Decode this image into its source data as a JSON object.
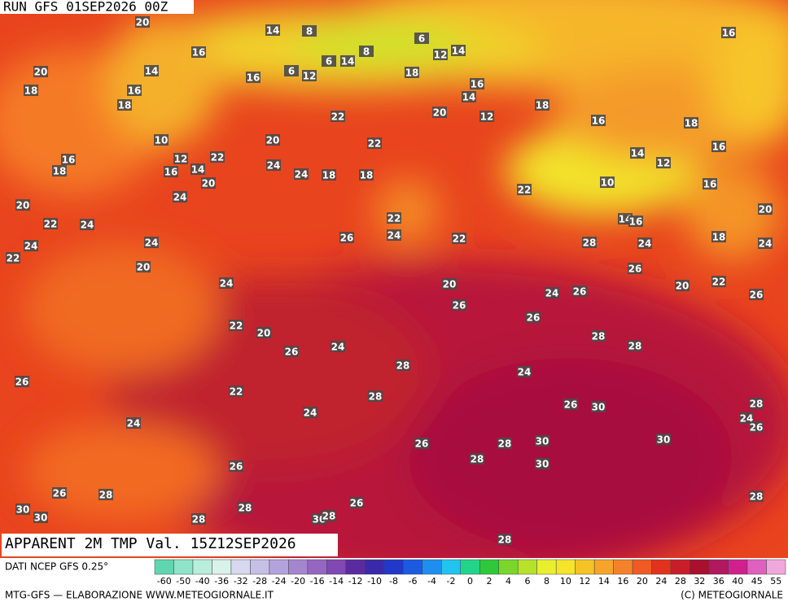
{
  "header": "RUN GFS 01SEP2026 00Z",
  "title": "APPARENT 2M TMP Val. 15Z12SEP2026",
  "source": "DATI NCEP GFS 0.25°",
  "footer_left": "MTG-GFS — ELABORAZIONE WWW.METEOGIORNALE.IT",
  "footer_right": "(C) METEOGIORNALE",
  "colorbar": {
    "labels": [
      -60,
      -50,
      -40,
      -36,
      -32,
      -28,
      -24,
      -20,
      -16,
      -14,
      -12,
      -10,
      -8,
      -6,
      -4,
      -2,
      0,
      2,
      4,
      6,
      8,
      10,
      12,
      14,
      16,
      20,
      24,
      28,
      32,
      36,
      40,
      45,
      55
    ],
    "colors": [
      "#5fd6b0",
      "#8fe3c8",
      "#b8eedb",
      "#d9f3ea",
      "#d8d8f0",
      "#c6bfe6",
      "#b3a3dc",
      "#a486cf",
      "#9466c2",
      "#7f48b2",
      "#5a2ba0",
      "#3a2aa8",
      "#2238c8",
      "#1c5ae0",
      "#1e8ef0",
      "#22c3ee",
      "#24d48a",
      "#2fc83a",
      "#7ad62a",
      "#b6e22c",
      "#e9ef2e",
      "#f6e42a",
      "#f5c326",
      "#f6a52a",
      "#f4822a",
      "#f05a24",
      "#e2321e",
      "#c81e2a",
      "#a8102e",
      "#b01860",
      "#d0208e",
      "#e060c0",
      "#f0a8dc"
    ]
  },
  "map_labels": [
    20,
    14,
    8,
    16,
    14,
    20,
    18,
    16,
    18,
    16,
    6,
    12,
    6,
    14,
    8,
    6,
    12,
    14,
    18,
    16,
    14,
    20,
    12,
    18,
    16,
    18,
    16,
    22,
    10,
    12,
    22,
    20,
    22,
    14,
    12,
    16,
    16,
    18,
    16,
    14,
    20,
    24,
    24,
    18,
    18,
    22,
    10,
    16,
    20,
    24,
    22,
    24,
    22,
    24,
    26,
    22,
    20,
    14,
    16,
    24,
    22,
    24,
    28,
    24,
    18,
    24,
    20,
    24,
    20,
    26,
    20,
    22,
    26,
    26,
    24,
    26,
    26,
    22,
    20,
    28,
    28,
    26,
    24,
    28,
    26,
    24,
    28,
    22,
    26,
    30,
    28,
    24,
    24,
    26,
    24,
    30,
    26,
    28,
    30,
    28,
    30,
    26,
    26,
    28,
    28,
    26,
    30,
    30,
    28,
    28,
    30,
    28,
    28
  ]
}
